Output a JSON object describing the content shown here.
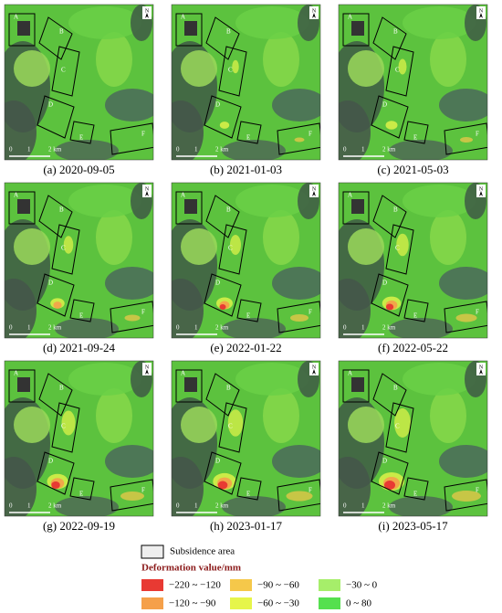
{
  "panels": [
    {
      "caption": "(a) 2020-09-05"
    },
    {
      "caption": "(b) 2021-01-03"
    },
    {
      "caption": "(c) 2021-05-03"
    },
    {
      "caption": "(d) 2021-09-24"
    },
    {
      "caption": "(e) 2022-01-22"
    },
    {
      "caption": "(f) 2022-05-22"
    },
    {
      "caption": "(g) 2022-09-19"
    },
    {
      "caption": "(h) 2023-01-17"
    },
    {
      "caption": "(i) 2023-05-17"
    }
  ],
  "map": {
    "regions": [
      "A",
      "B",
      "C",
      "D",
      "E",
      "F"
    ],
    "scale_bar": [
      "0",
      "1",
      "2 km"
    ],
    "north": "N"
  },
  "legend": {
    "subsidence_label": "Subsidence area",
    "title": "Deformation value/mm",
    "classes": [
      {
        "label": "−220 ~ −120",
        "color": "#e83a33"
      },
      {
        "label": "−120 ~ −90",
        "color": "#f5a04a"
      },
      {
        "label": "−90 ~ −60",
        "color": "#f5c84a"
      },
      {
        "label": "−60 ~ −30",
        "color": "#e6f54a"
      },
      {
        "label": "−30 ~ 0",
        "color": "#a6ee6a"
      },
      {
        "label": "0 ~ 80",
        "color": "#55e04e"
      }
    ]
  }
}
